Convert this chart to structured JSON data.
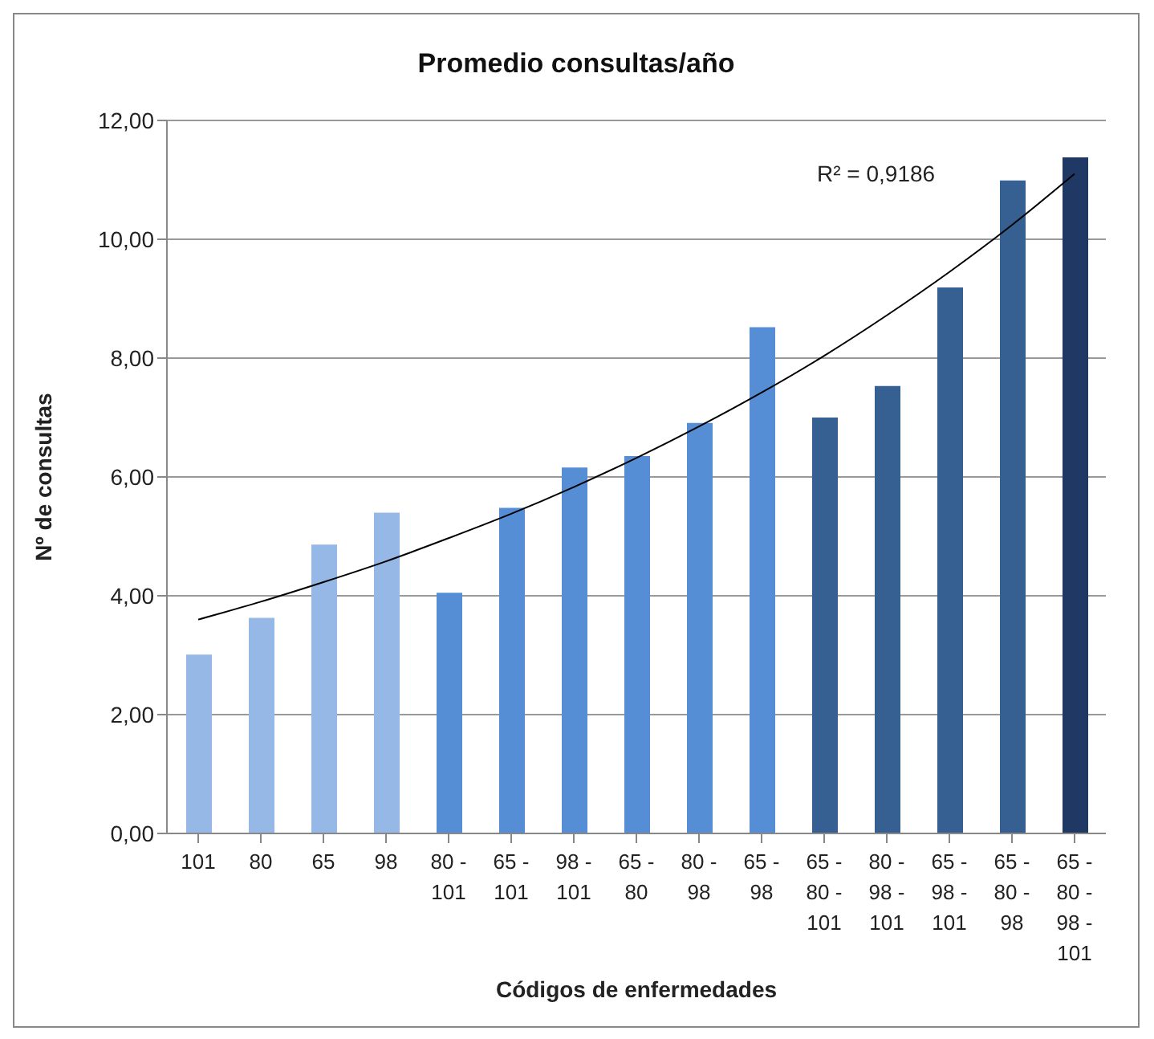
{
  "chart_data": {
    "type": "bar",
    "title": "Promedio consultas/año",
    "xlabel": "Códigos de enfermedades",
    "ylabel": "Nº de consultas",
    "categories": [
      "101",
      "80",
      "65",
      "98",
      "80 - 101",
      "65 - 101",
      "98 - 101",
      "65 - 80",
      "80 - 98",
      "65 - 98",
      "65 - 80 - 101",
      "80 - 98 - 101",
      "65 - 98 - 101",
      "65 - 80 - 98",
      "65 - 80 - 98 - 101"
    ],
    "series": [
      {
        "values": [
          3.01,
          3.63,
          4.86,
          5.4,
          4.05,
          5.48,
          6.16,
          6.35,
          6.91,
          8.52,
          7.0,
          7.53,
          9.19,
          10.99,
          11.38
        ],
        "colors": [
          "#95b8e6",
          "#95b8e6",
          "#95b8e6",
          "#95b8e6",
          "#558ed5",
          "#558ed5",
          "#558ed5",
          "#558ed5",
          "#558ed5",
          "#558ed5",
          "#376092",
          "#376092",
          "#376092",
          "#376092",
          "#1f3864"
        ]
      },
      {
        "type": "line",
        "color": "#000000",
        "marker": "none",
        "x": [
          "101",
          "80",
          "65",
          "98",
          "80 - 101",
          "65 - 101",
          "98 - 101",
          "65 - 80",
          "80 - 98",
          "65 - 98",
          "65 - 80 - 101",
          "80 - 98 - 101",
          "65 - 98 - 101",
          "65 - 80 - 98",
          "65 - 80 - 98 - 101"
        ],
        "values": [
          3.6,
          3.9,
          4.23,
          4.58,
          4.97,
          5.38,
          5.83,
          6.32,
          6.85,
          7.42,
          8.04,
          8.72,
          9.45,
          10.24,
          11.1
        ]
      }
    ],
    "ylim": [
      0,
      12
    ],
    "yticks": [
      {
        "value": 0,
        "label": "0,00"
      },
      {
        "value": 2,
        "label": "2,00"
      },
      {
        "value": 4,
        "label": "4,00"
      },
      {
        "value": 6,
        "label": "6,00"
      },
      {
        "value": 8,
        "label": "8,00"
      },
      {
        "value": 10,
        "label": "10,00"
      },
      {
        "value": 12,
        "label": "12,00"
      }
    ],
    "grid": "y",
    "legend": false,
    "annotations": [
      "R² = 0,9186"
    ]
  }
}
